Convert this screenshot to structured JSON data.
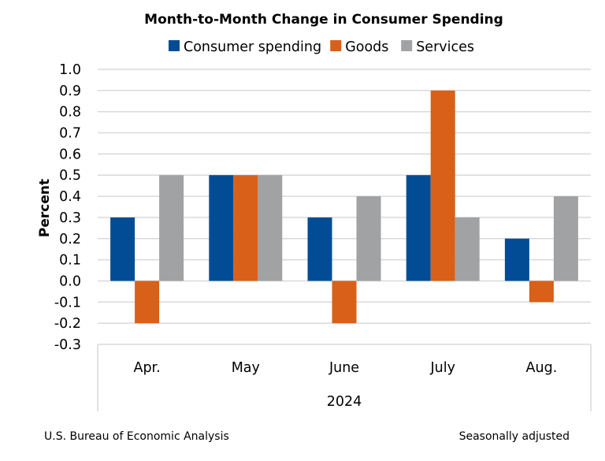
{
  "chart_data": {
    "type": "bar",
    "title": "Month-to-Month Change in Consumer Spending",
    "xlabel": "2024",
    "ylabel": "Percent",
    "ylim": [
      -0.3,
      1.0
    ],
    "yticks": [
      "1.0",
      "0.9",
      "0.8",
      "0.7",
      "0.6",
      "0.5",
      "0.4",
      "0.3",
      "0.2",
      "0.1",
      "0.0",
      "-0.1",
      "-0.2",
      "-0.3"
    ],
    "ytick_values": [
      1.0,
      0.9,
      0.8,
      0.7,
      0.6,
      0.5,
      0.4,
      0.3,
      0.2,
      0.1,
      0.0,
      -0.1,
      -0.2,
      -0.3
    ],
    "grid": true,
    "legend_position": "top",
    "categories": [
      "Apr.",
      "May",
      "June",
      "July",
      "Aug."
    ],
    "series": [
      {
        "name": "Consumer spending",
        "color": "#024C96",
        "values": [
          0.3,
          0.5,
          0.3,
          0.5,
          0.2
        ]
      },
      {
        "name": "Goods",
        "color": "#D86018",
        "values": [
          -0.2,
          0.5,
          -0.2,
          0.9,
          -0.1
        ]
      },
      {
        "name": "Services",
        "color": "#A0A2A3",
        "values": [
          0.5,
          0.5,
          0.4,
          0.3,
          0.4
        ]
      }
    ]
  },
  "footer": {
    "source": "U.S. Bureau of Economic Analysis",
    "note": "Seasonally adjusted"
  }
}
